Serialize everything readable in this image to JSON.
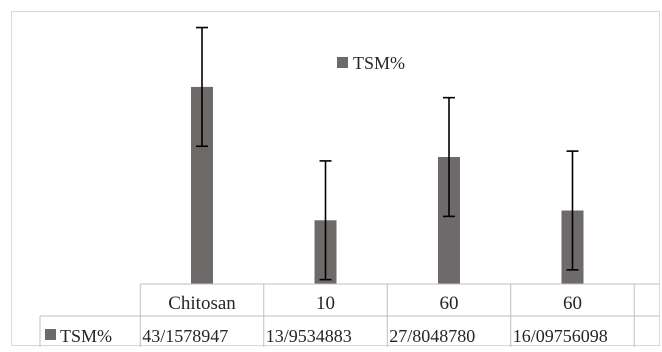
{
  "colors": {
    "bar": "#6e6a6a",
    "error_bar": "#000000",
    "chart_border": "#d9d9d9",
    "table_line": "#bfbfbf"
  },
  "chart_data": {
    "type": "bar",
    "categories": [
      "Chitosan",
      "10",
      "60",
      "60"
    ],
    "series": [
      {
        "name": "TSM%",
        "values": [
          43.1578947,
          13.9534883,
          27.804878,
          16.0975609
        ],
        "errors": [
          13,
          13,
          13,
          13
        ]
      }
    ],
    "legend": {
      "position": "top-center",
      "label": "TSM%"
    },
    "table": {
      "row_label": "TSM%",
      "cells": [
        "43/1578947",
        "13/9534883",
        "27/8048780",
        "16/09756098"
      ]
    },
    "ylim": [
      0,
      60
    ],
    "grid": false,
    "axes_visible": false
  }
}
